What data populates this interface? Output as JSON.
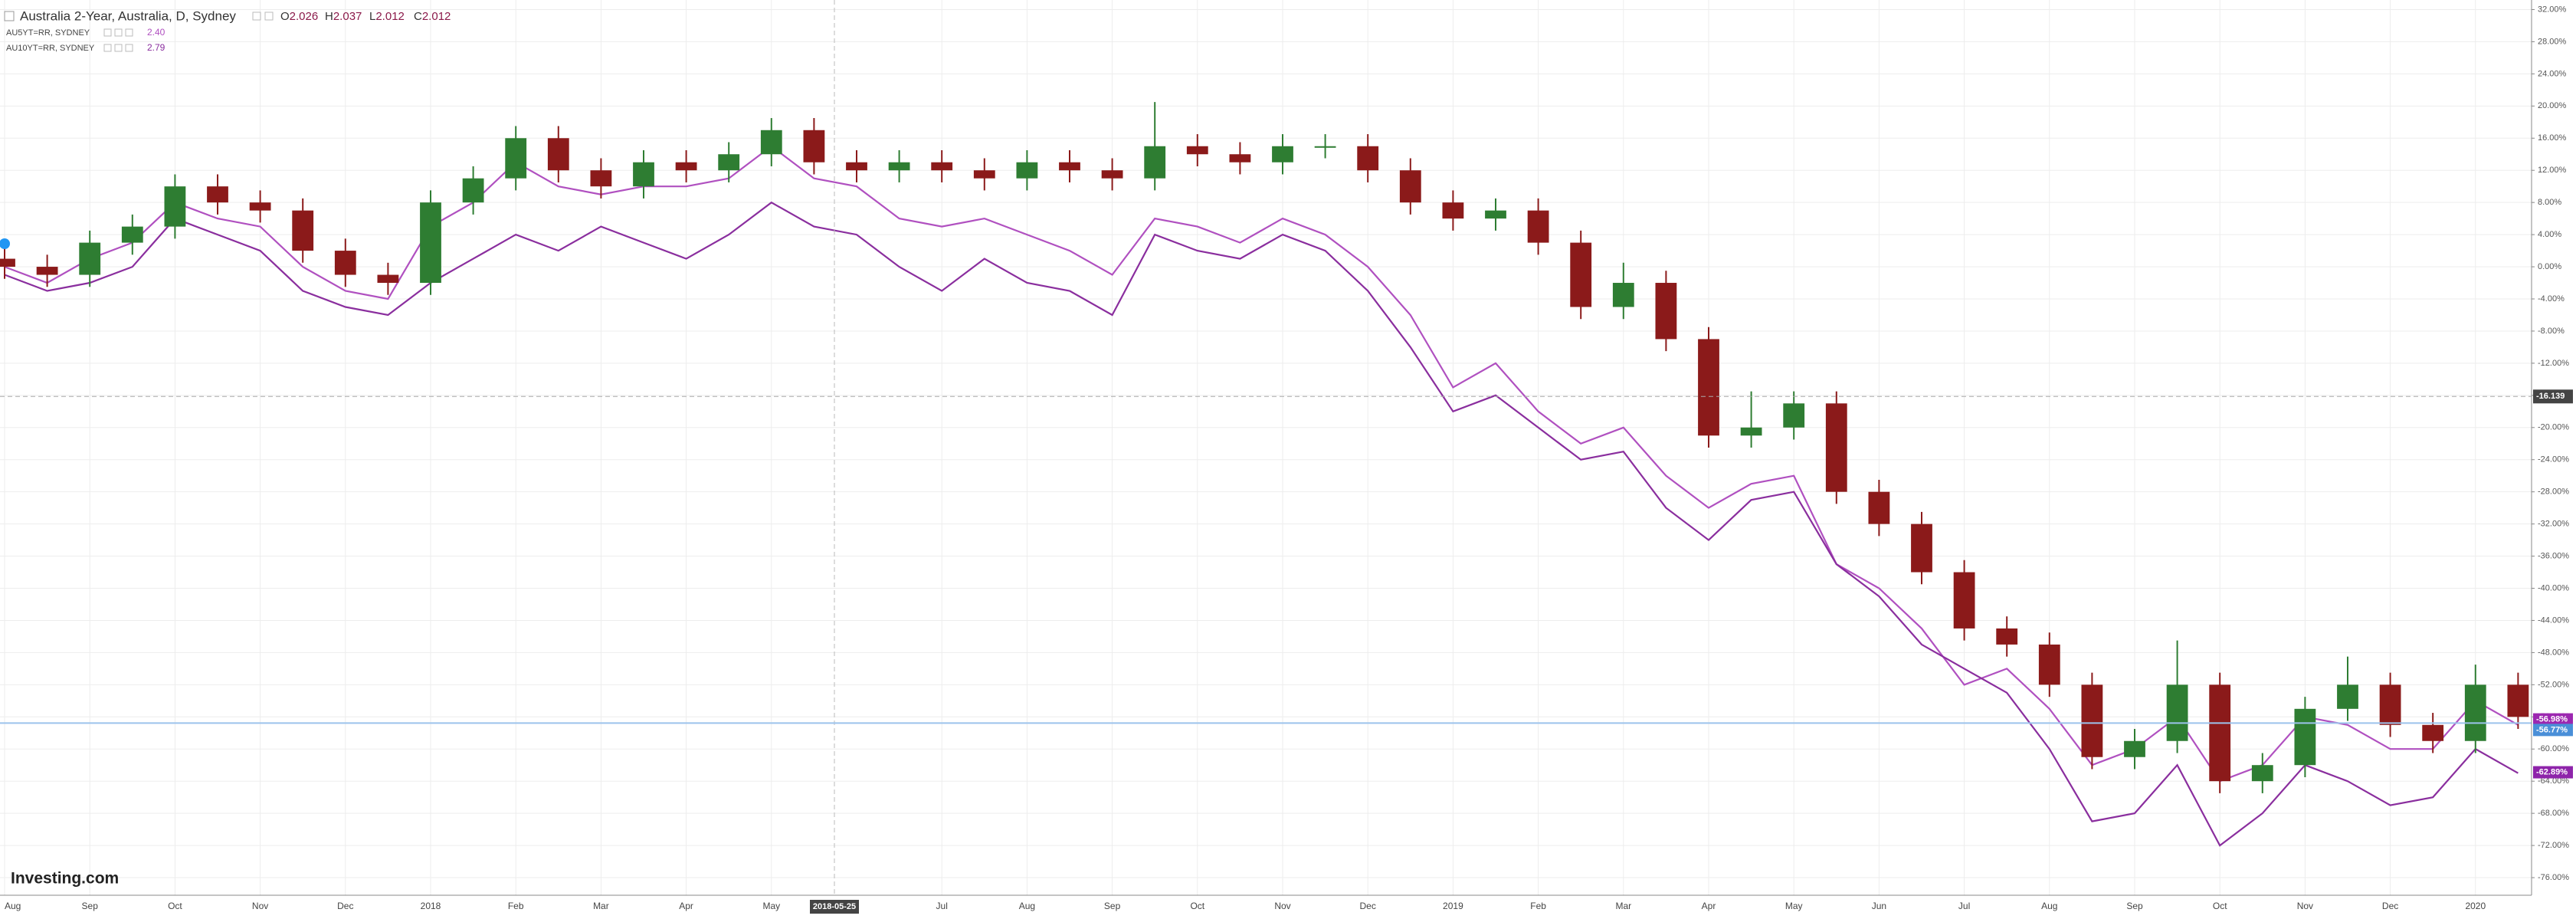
{
  "chart_data": {
    "type": "candlestick",
    "title": "Australia 2-Year, Australia, D, Sydney",
    "ohlc_legend": [
      {
        "label": "O",
        "value": 2.026
      },
      {
        "label": "H",
        "value": 2.037
      },
      {
        "label": "L",
        "value": 2.012
      },
      {
        "label": "C",
        "value": 2.012
      }
    ],
    "watermark": "Investing.com",
    "categories": [
      "Aug",
      null,
      "Sep",
      null,
      "Oct",
      null,
      "Nov",
      null,
      "Dec",
      null,
      "2018",
      null,
      "Feb",
      null,
      "Mar",
      null,
      "Apr",
      null,
      "May",
      null,
      null,
      null,
      "Jul",
      null,
      "Aug",
      null,
      "Sep",
      null,
      "Oct",
      null,
      "Nov",
      null,
      "Dec",
      null,
      "2019",
      null,
      "Feb",
      null,
      "Mar",
      null,
      "Apr",
      null,
      "May",
      null,
      "Jun",
      null,
      "Jul",
      null,
      "Aug",
      null,
      "Sep",
      null,
      "Oct",
      null,
      "Nov",
      null,
      "Dec",
      null,
      "2020",
      null
    ],
    "candles": {
      "up_color": "#2e7d32",
      "down_color": "#8b1a1a",
      "open": [
        1,
        0,
        -1,
        3,
        5,
        10,
        8,
        7,
        2,
        -1,
        -2,
        8,
        11,
        16,
        12,
        10,
        13,
        12,
        14,
        17,
        13,
        12,
        13,
        12,
        11,
        13,
        12,
        11,
        15,
        14,
        13,
        15,
        15,
        12,
        8,
        6,
        7,
        3,
        -5,
        -2,
        -9,
        -21,
        -20,
        -17,
        -28,
        -32,
        -38,
        -45,
        -47,
        -52,
        -61,
        -59,
        -52,
        -64,
        -62,
        -55,
        -52,
        -57,
        -59,
        -52
      ],
      "high": [
        2.5,
        1.5,
        4.5,
        6.5,
        11.5,
        11.5,
        9.5,
        8.5,
        3.5,
        0.5,
        9.5,
        12.5,
        17.5,
        17.5,
        13.5,
        14.5,
        14.5,
        15.5,
        18.5,
        18.5,
        14.5,
        14.5,
        14.5,
        13.5,
        14.5,
        14.5,
        13.5,
        20.5,
        16.5,
        15.5,
        16.5,
        16.5,
        16.5,
        13.5,
        9.5,
        8.5,
        8.5,
        4.5,
        0.5,
        -0.5,
        -7.5,
        -15.5,
        -15.5,
        -15.5,
        -26.5,
        -30.5,
        -36.5,
        -43.5,
        -45.5,
        -50.5,
        -57.5,
        -46.5,
        -50.5,
        -60.5,
        -53.5,
        -48.5,
        -50.5,
        -55.5,
        -49.5,
        -50.5
      ],
      "low": [
        -1.5,
        -2.5,
        -2.5,
        1.5,
        3.5,
        6.5,
        5.5,
        0.5,
        -2.5,
        -3.5,
        -3.5,
        6.5,
        9.5,
        10.5,
        8.5,
        8.5,
        10.5,
        10.5,
        12.5,
        11.5,
        10.5,
        10.5,
        10.5,
        9.5,
        9.5,
        10.5,
        9.5,
        9.5,
        12.5,
        11.5,
        11.5,
        13.5,
        10.5,
        6.5,
        4.5,
        4.5,
        1.5,
        -6.5,
        -6.5,
        -10.5,
        -22.5,
        -22.5,
        -21.5,
        -29.5,
        -33.5,
        -39.5,
        -46.5,
        -48.5,
        -53.5,
        -62.5,
        -62.5,
        -60.5,
        -65.5,
        -65.5,
        -63.5,
        -56.5,
        -58.5,
        -60.5,
        -60.5,
        -57.5
      ],
      "close": [
        0,
        -1,
        3,
        5,
        10,
        8,
        7,
        2,
        -1,
        -2,
        8,
        11,
        16,
        12,
        10,
        13,
        12,
        14,
        17,
        13,
        12,
        13,
        12,
        11,
        13,
        12,
        11,
        15,
        14,
        13,
        15,
        15,
        12,
        8,
        6,
        7,
        3,
        -5,
        -2,
        -9,
        -21,
        -20,
        -17,
        -28,
        -32,
        -38,
        -45,
        -47,
        -52,
        -61,
        -59,
        -52,
        -64,
        -62,
        -55,
        -52,
        -57,
        -59,
        -52,
        -56
      ]
    },
    "series": [
      {
        "name": "AU5YT=RR, SYDNEY",
        "legend_value": "2.40",
        "color": "#b050c0",
        "values": [
          0,
          -2,
          1,
          3,
          8,
          6,
          5,
          0,
          -3,
          -4,
          5,
          8,
          13,
          10,
          9,
          10,
          10,
          11,
          15,
          11,
          10,
          6,
          5,
          6,
          4,
          2,
          -1,
          6,
          5,
          3,
          6,
          4,
          0,
          -6,
          -15,
          -12,
          -18,
          -22,
          -20,
          -26,
          -30,
          -27,
          -26,
          -37,
          -40,
          -45,
          -52,
          -50,
          -55,
          -62,
          -60,
          -56,
          -64,
          -62,
          -56,
          -57,
          -60,
          -60,
          -54,
          -57
        ]
      },
      {
        "name": "AU10YT=RR, SYDNEY",
        "legend_value": "2.79",
        "color": "#8a2e9e",
        "values": [
          -1,
          -3,
          -2,
          0,
          6,
          4,
          2,
          -3,
          -5,
          -6,
          -2,
          1,
          4,
          2,
          5,
          3,
          1,
          4,
          8,
          5,
          4,
          0,
          -3,
          1,
          -2,
          -3,
          -6,
          4,
          2,
          1,
          4,
          2,
          -3,
          -10,
          -18,
          -16,
          -20,
          -24,
          -23,
          -30,
          -34,
          -29,
          -28,
          -37,
          -41,
          -47,
          -50,
          -53,
          -60,
          -69,
          -68,
          -62,
          -72,
          -68,
          -62,
          -64,
          -67,
          -66,
          -60,
          -63
        ]
      }
    ],
    "ylim": [
      -78,
      33
    ],
    "yticks": [
      {
        "value": 32,
        "label": "32.00%"
      },
      {
        "value": 28,
        "label": "28.00%"
      },
      {
        "value": 24,
        "label": "24.00%"
      },
      {
        "value": 20,
        "label": "20.00%"
      },
      {
        "value": 16,
        "label": "16.00%"
      },
      {
        "value": 12,
        "label": "12.00%"
      },
      {
        "value": 8,
        "label": "8.00%"
      },
      {
        "value": 4,
        "label": "4.00%"
      },
      {
        "value": 0,
        "label": "0.00%"
      },
      {
        "value": -4,
        "label": "-4.00%"
      },
      {
        "value": -8,
        "label": "-8.00%"
      },
      {
        "value": -12,
        "label": "-12.00%"
      },
      {
        "value": -16,
        "label": "-16.00%"
      },
      {
        "value": -20,
        "label": "-20.00%"
      },
      {
        "value": -24,
        "label": "-24.00%"
      },
      {
        "value": -28,
        "label": "-28.00%"
      },
      {
        "value": -32,
        "label": "-32.00%"
      },
      {
        "value": -36,
        "label": "-36.00%"
      },
      {
        "value": -40,
        "label": "-40.00%"
      },
      {
        "value": -44,
        "label": "-44.00%"
      },
      {
        "value": -48,
        "label": "-48.00%"
      },
      {
        "value": -52,
        "label": "-52.00%"
      },
      {
        "value": -56,
        "label": "-56.00%"
      },
      {
        "value": -60,
        "label": "-60.00%"
      },
      {
        "value": -64,
        "label": "-64.00%"
      },
      {
        "value": -68,
        "label": "-68.00%"
      },
      {
        "value": -72,
        "label": "-72.00%"
      },
      {
        "value": -76,
        "label": "-76.00%"
      }
    ],
    "grid": true,
    "crosshair": {
      "date": "2018-05-25",
      "value": -16.139
    },
    "price_labels": [
      {
        "value": -56.98,
        "label": "-56.98%",
        "color": "#9c27b0"
      },
      {
        "value": -56.77,
        "label": "-56.77%",
        "color": "#4a8fd8"
      },
      {
        "value": -62.89,
        "label": "-62.89%",
        "color": "#8e24aa"
      }
    ]
  }
}
